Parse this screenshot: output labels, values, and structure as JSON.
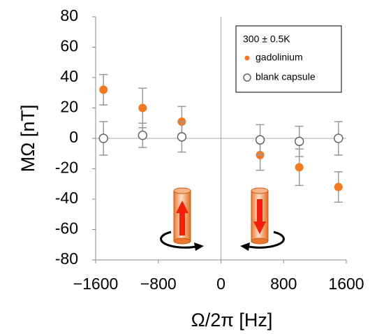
{
  "chart_data": {
    "type": "scatter",
    "x_label": "Ω/2π [Hz]",
    "y_label": "MΩ  [nT]",
    "legend_title": "300 ± 0.5K",
    "legend_position": "upper right",
    "xlim": [
      -1600,
      1600
    ],
    "ylim": [
      -80,
      80
    ],
    "xticks": [
      {
        "value": -1600,
        "label": "−1600"
      },
      {
        "value": -800,
        "label": "−800"
      },
      0,
      800,
      1600
    ],
    "yticks": [
      -80,
      -60,
      -40,
      -20,
      0,
      20,
      40,
      60,
      80
    ],
    "series": [
      {
        "name": "gadolinium",
        "color": "#f47920",
        "marker": "filled",
        "x": [
          -1500,
          -1000,
          -500,
          500,
          1000,
          1500
        ],
        "values": [
          32,
          20,
          11,
          -11,
          -19,
          -32
        ],
        "errors": [
          10,
          13,
          10,
          10,
          12,
          10
        ]
      },
      {
        "name": "blank capsule",
        "color": "#666666",
        "marker": "open",
        "x": [
          -1500,
          -1000,
          -500,
          500,
          1000,
          1500
        ],
        "values": [
          0,
          2,
          1,
          -1,
          -2,
          0
        ],
        "errors": [
          11,
          8,
          10,
          10,
          10,
          11
        ]
      }
    ]
  }
}
